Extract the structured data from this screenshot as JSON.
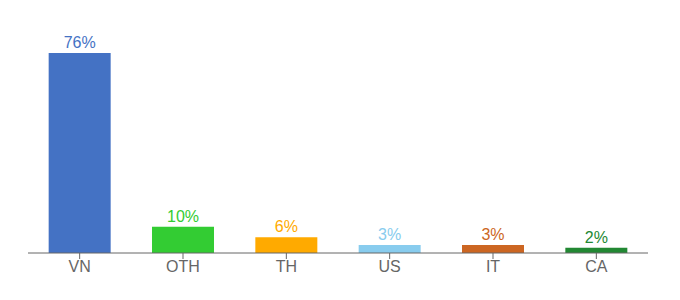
{
  "chart_data": {
    "type": "bar",
    "categories": [
      "VN",
      "OTH",
      "TH",
      "US",
      "IT",
      "CA"
    ],
    "values": [
      76,
      10,
      6,
      3,
      3,
      2
    ],
    "value_labels": [
      "76%",
      "10%",
      "6%",
      "3%",
      "3%",
      "2%"
    ],
    "colors": [
      "#4472C4",
      "#33CC33",
      "#FFAA00",
      "#88CCEE",
      "#CC6622",
      "#228833"
    ],
    "ylim": [
      0,
      84
    ],
    "data_labels": true,
    "tick_labels": "x",
    "grid": false
  }
}
